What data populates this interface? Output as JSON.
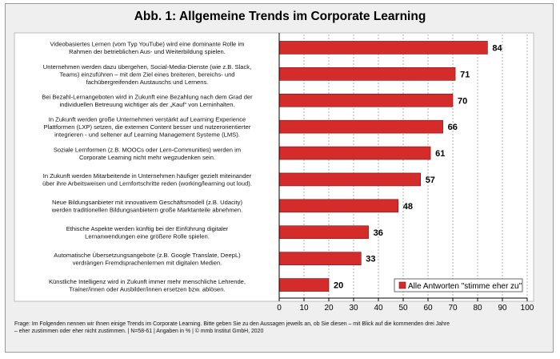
{
  "chart_data": {
    "type": "bar",
    "orientation": "horizontal",
    "title": "Abb. 1: Allgemeine Trends im Corporate Learning",
    "categories": [
      [
        "Videobasiertes Lernen (vom Typ YouTube) wird eine dominante Rolle im",
        "Rahmen der betrieblichen Aus- und Weiterbildung spielen."
      ],
      [
        "Unternehmen werden dazu übergehen, Social-Media-Dienste (wie z.B. Slack,",
        "Teams) einzuführen – mit dem Ziel eines breiteren, bereichs- und",
        "fachübergreifenden Austauschs und Lernens."
      ],
      [
        "Bei Bezahl-Lernangeboten wird in Zukunft eine Bezahlung nach dem Grad der",
        "individuellen Betreuung wichtiger als der „Kauf“ von Lerninhalten."
      ],
      [
        "In Zukunft werden große Unternehmen verstärkt auf Learning Experience",
        "Plattformen (LXP) setzen, die externen Content besser und nutzerorientierter",
        "integrieren - und seltener auf Learning Management Systeme (LMS)."
      ],
      [
        "Soziale Lernformen (z.B. MOOCs oder Lern-Communities) werden im",
        "Corporate Learning nicht mehr wegzudenken sein."
      ],
      [
        "In Zukunft werden Mitarbeitende in Unternehmen häufiger gezielt miteinander",
        "über ihre Arbeitsweisen und Lernfortschritte reden (working/learning out loud)."
      ],
      [
        "Neue Bildungsanbieter mit innovativem Geschäftsmodell (z.B. Udacity)",
        "werden traditionellen Bildungsanbietern große Marktanteile abnehmen."
      ],
      [
        "Ethische Aspekte werden künftig bei der Einführung digitaler",
        "Lernanwendungen eine größere Rolle spielen."
      ],
      [
        "Automatische Übersetzungsangebote (z.B. Google Translate, DeepL)",
        "verdrängen Fremdsprachenlernen mit digitalen Medien."
      ],
      [
        "Künstliche Intelligenz wird in Zukunft immer mehr menschliche Lehrende,",
        "Trainer/innen oder Ausbilder/innen ersetzen bzw. ablösen."
      ]
    ],
    "series": [
      {
        "name": "Alle Antworten \"stimme eher zu\"",
        "values": [
          84,
          71,
          70,
          66,
          61,
          57,
          48,
          36,
          33,
          20
        ]
      }
    ],
    "xlim": [
      0,
      100
    ],
    "xticks": [
      0,
      10,
      20,
      30,
      40,
      50,
      60,
      70,
      80,
      90,
      100
    ],
    "grid": "vertical dashed",
    "legend": "bottom-right",
    "bar_color": "#d42b2b",
    "footnote": [
      "Frage: Im Folgenden nennen wir Ihnen einige Trends im Corporate Learning. Bitte geben Sie zu den Aussagen jeweils an, ob Sie diesen – mit Blick auf die kommenden drei Jahre",
      "– eher zustimmen oder eher nicht zustimmen.  | N=58-61  | Angaben in %  | © mmb Institut GmbH, 2020"
    ]
  }
}
